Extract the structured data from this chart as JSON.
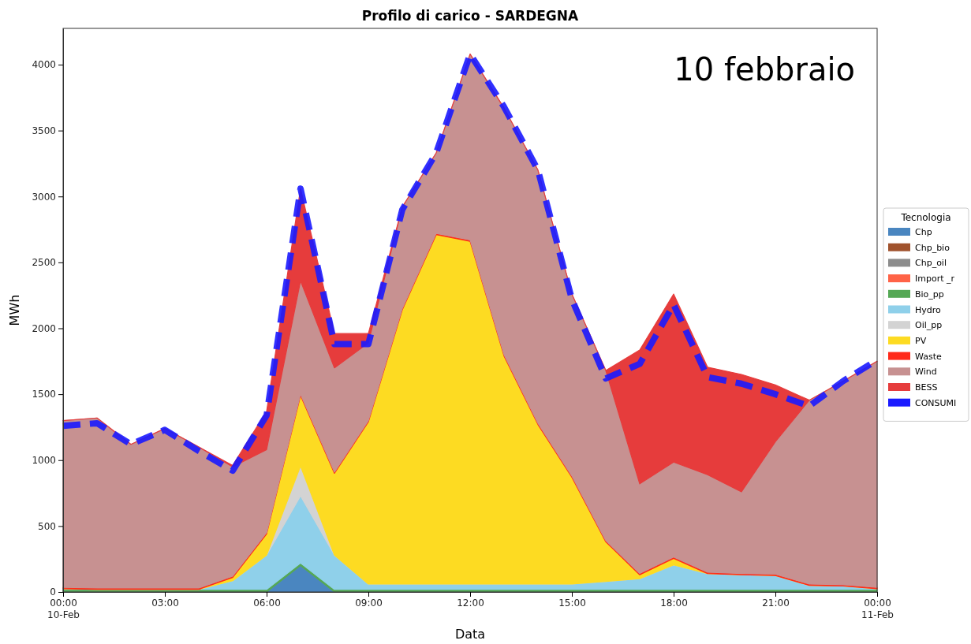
{
  "chart_data": {
    "type": "area",
    "title": "Profilo di carico - SARDEGNA",
    "xlabel": "Data",
    "ylabel": "MWh",
    "legend_title": "Tecnologia",
    "legend": "right",
    "stacked": true,
    "annotations": [
      "10 febbraio"
    ],
    "x": [
      0,
      1,
      2,
      3,
      4,
      5,
      6,
      7,
      8,
      9,
      10,
      11,
      12,
      13,
      14,
      15,
      16,
      17,
      18,
      19,
      20,
      21,
      22,
      23,
      24
    ],
    "xlim": [
      0,
      24
    ],
    "xticks": [
      {
        "value": 0,
        "label": "00:00\n10-Feb"
      },
      {
        "value": 3,
        "label": "03:00"
      },
      {
        "value": 6,
        "label": "06:00"
      },
      {
        "value": 9,
        "label": "09:00"
      },
      {
        "value": 12,
        "label": "12:00"
      },
      {
        "value": 15,
        "label": "15:00"
      },
      {
        "value": 18,
        "label": "18:00"
      },
      {
        "value": 21,
        "label": "21:00"
      },
      {
        "value": 24,
        "label": "00:00\n11-Feb"
      }
    ],
    "ylim": [
      0,
      4275
    ],
    "yticks": [
      0,
      500,
      1000,
      1500,
      2000,
      2500,
      3000,
      3500,
      4000
    ],
    "series": [
      {
        "name": "Chp",
        "color": "#4a86c0",
        "values": [
          0,
          0,
          0,
          0,
          0,
          0,
          0,
          200,
          0,
          0,
          0,
          0,
          0,
          0,
          0,
          0,
          0,
          0,
          0,
          0,
          0,
          0,
          0,
          0,
          0
        ]
      },
      {
        "name": "Chp_bio",
        "color": "#a0522d",
        "values": [
          null,
          null,
          null,
          null,
          null,
          null,
          null,
          null,
          null,
          null,
          null,
          null,
          null,
          null,
          null,
          null,
          null,
          null,
          null,
          null,
          null,
          null,
          null,
          null,
          null
        ]
      },
      {
        "name": "Chp_oil",
        "color": "#8c8c8c",
        "values": [
          null,
          null,
          null,
          null,
          null,
          null,
          null,
          null,
          null,
          null,
          null,
          null,
          null,
          null,
          null,
          null,
          null,
          null,
          null,
          null,
          null,
          null,
          null,
          null,
          null
        ]
      },
      {
        "name": "Import _r",
        "color": "#ff6347",
        "values": [
          null,
          null,
          null,
          null,
          null,
          null,
          null,
          null,
          null,
          null,
          null,
          null,
          null,
          null,
          null,
          null,
          null,
          null,
          null,
          null,
          null,
          null,
          null,
          null,
          null
        ]
      },
      {
        "name": "Bio_pp",
        "color": "#55a855",
        "values": [
          20,
          20,
          20,
          20,
          20,
          20,
          20,
          20,
          20,
          20,
          20,
          20,
          20,
          20,
          20,
          20,
          20,
          20,
          20,
          20,
          20,
          20,
          20,
          20,
          20
        ]
      },
      {
        "name": "Hydro",
        "color": "#8fd0ea",
        "values": [
          5,
          0,
          0,
          0,
          0,
          65,
          260,
          510,
          260,
          40,
          40,
          40,
          40,
          40,
          40,
          40,
          60,
          80,
          185,
          120,
          110,
          105,
          30,
          25,
          5
        ]
      },
      {
        "name": "Oil_pp",
        "color": "#d3d3d3",
        "values": [
          0,
          0,
          0,
          0,
          0,
          0,
          0,
          225,
          0,
          0,
          0,
          0,
          0,
          0,
          0,
          0,
          0,
          0,
          0,
          0,
          0,
          0,
          0,
          0,
          0
        ]
      },
      {
        "name": "PV",
        "color": "#fddb22",
        "values": [
          0,
          0,
          0,
          0,
          0,
          25,
          160,
          535,
          620,
          1230,
          2080,
          2650,
          2600,
          1730,
          1210,
          810,
          300,
          30,
          50,
          0,
          0,
          0,
          0,
          0,
          0
        ]
      },
      {
        "name": "Waste",
        "color": "#ff2a1a",
        "values": [
          10,
          10,
          10,
          10,
          10,
          10,
          10,
          10,
          10,
          10,
          10,
          10,
          10,
          10,
          10,
          10,
          10,
          10,
          10,
          10,
          10,
          10,
          10,
          10,
          10
        ]
      },
      {
        "name": "Wind",
        "color": "#c79191",
        "values": [
          1265,
          1290,
          1090,
          1210,
          1070,
          830,
          630,
          860,
          790,
          590,
          770,
          610,
          1410,
          1870,
          1920,
          1380,
          1290,
          680,
          720,
          740,
          620,
          1005,
          1395,
          1545,
          1715
        ]
      },
      {
        "name": "BESS",
        "color": "#e63c3c",
        "values": [
          0,
          0,
          0,
          0,
          0,
          10,
          290,
          700,
          260,
          70,
          0,
          0,
          0,
          0,
          0,
          0,
          0,
          1015,
          1275,
          815,
          890,
          430,
          0,
          0,
          0
        ]
      },
      {
        "name": "CONSUMI",
        "type": "line",
        "line_style": "dashed",
        "color": "#1a1aff",
        "values": [
          1260,
          1280,
          1120,
          1230,
          1070,
          920,
          1340,
          3060,
          1880,
          1880,
          2900,
          3330,
          4080,
          3680,
          3200,
          2220,
          1620,
          1730,
          2180,
          1630,
          1580,
          1500,
          1410,
          1600,
          1760
        ]
      }
    ]
  }
}
